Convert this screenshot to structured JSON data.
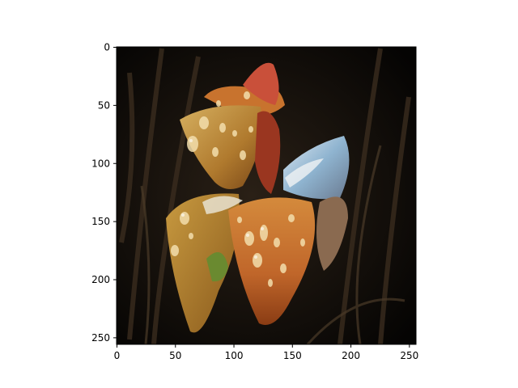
{
  "figure": {
    "image_description_colors": {
      "background": "#0a0806",
      "leaf_dark": "#2a2016",
      "petal_orange": "#c8782e",
      "petal_gold": "#b59a42",
      "petal_red": "#b0452a",
      "green_accent": "#6a8a30",
      "blue_petal": "#a9c3d6"
    },
    "x_axis": {
      "ticks": [
        "0",
        "50",
        "100",
        "150",
        "200",
        "250"
      ],
      "tick_values": [
        0,
        50,
        100,
        150,
        200,
        250
      ],
      "range": [
        0,
        256
      ]
    },
    "y_axis": {
      "ticks": [
        "0",
        "50",
        "100",
        "150",
        "200",
        "250"
      ],
      "tick_values": [
        0,
        50,
        100,
        150,
        200,
        250
      ],
      "range": [
        0,
        256
      ],
      "inverted": true
    }
  }
}
